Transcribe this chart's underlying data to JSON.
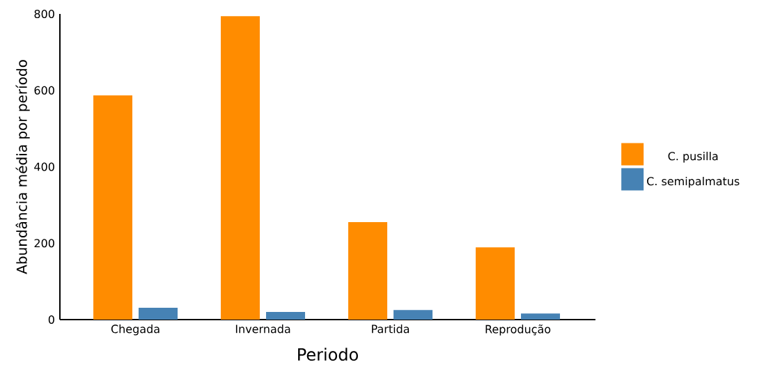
{
  "chart_data": {
    "type": "bar",
    "xlabel": "Periodo",
    "ylabel": "Abundância média por período",
    "categories": [
      "Chegada",
      "Invernada",
      "Partida",
      "Reprodução"
    ],
    "series": [
      {
        "name": "C. pusilla",
        "color": "#ff8c00",
        "values": [
          587,
          794,
          255,
          189
        ]
      },
      {
        "name": "C. semipalmatus",
        "color": "#4682b4",
        "values": [
          31,
          20,
          25,
          16
        ]
      }
    ],
    "ylim": [
      0,
      800
    ],
    "yticks": [
      0,
      200,
      400,
      600,
      800
    ],
    "legend": "right"
  }
}
